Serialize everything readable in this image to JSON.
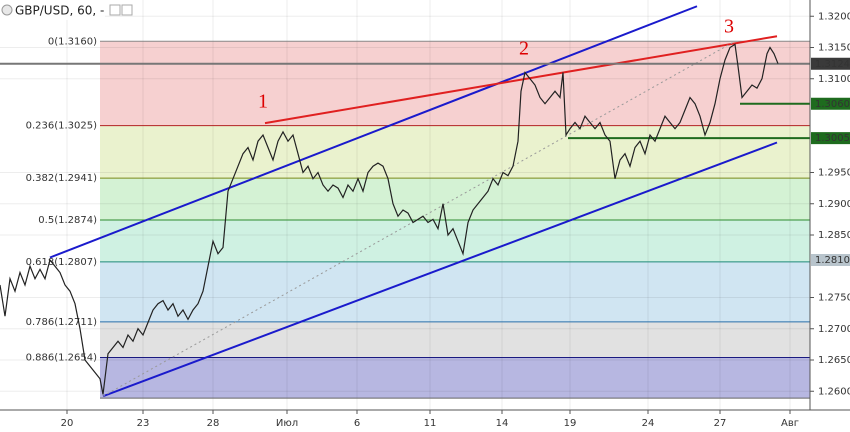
{
  "header": "GBP/USD, 60, -",
  "chart_data": {
    "type": "line",
    "color": "#222",
    "xlim": [
      0,
      810
    ],
    "ylim": [
      1.257,
      1.3226
    ],
    "xticks": [
      {
        "value": 67,
        "label": "20"
      },
      {
        "value": 143,
        "label": "23"
      },
      {
        "value": 213,
        "label": "28"
      },
      {
        "value": 287,
        "label": "Июл"
      },
      {
        "value": 357,
        "label": "6"
      },
      {
        "value": 430,
        "label": "11"
      },
      {
        "value": 502,
        "label": "14"
      },
      {
        "value": 570,
        "label": "19"
      },
      {
        "value": 648,
        "label": "24"
      },
      {
        "value": 720,
        "label": "27"
      },
      {
        "value": 790,
        "label": "Авг"
      }
    ],
    "yticks": [
      {
        "value": 1.32,
        "label": "1.3200"
      },
      {
        "value": 1.315,
        "label": "1.3150"
      },
      {
        "value": 1.31,
        "label": "1.3100"
      },
      {
        "value": 1.295,
        "label": "1.2950"
      },
      {
        "value": 1.29,
        "label": "1.2900"
      },
      {
        "value": 1.285,
        "label": "1.2850"
      },
      {
        "value": 1.275,
        "label": "1.2750"
      },
      {
        "value": 1.27,
        "label": "1.2700"
      },
      {
        "value": 1.265,
        "label": "1.2650"
      },
      {
        "value": 1.26,
        "label": "1.2600"
      }
    ],
    "grid": true,
    "x": [
      0,
      5,
      10,
      15,
      20,
      25,
      30,
      35,
      40,
      45,
      50,
      55,
      60,
      65,
      70,
      75,
      80,
      85,
      90,
      95,
      100,
      103,
      108,
      113,
      118,
      123,
      128,
      133,
      138,
      143,
      148,
      153,
      158,
      163,
      168,
      173,
      178,
      183,
      188,
      193,
      198,
      203,
      208,
      213,
      218,
      223,
      228,
      233,
      238,
      243,
      248,
      253,
      258,
      263,
      268,
      273,
      278,
      283,
      288,
      293,
      298,
      303,
      308,
      313,
      318,
      323,
      328,
      333,
      338,
      343,
      348,
      353,
      358,
      363,
      368,
      373,
      378,
      383,
      388,
      393,
      398,
      403,
      408,
      413,
      418,
      423,
      428,
      433,
      438,
      443,
      448,
      453,
      458,
      463,
      468,
      473,
      478,
      483,
      488,
      493,
      498,
      503,
      508,
      513,
      518,
      521,
      525,
      530,
      535,
      540,
      545,
      550,
      555,
      560,
      563,
      566,
      570,
      575,
      580,
      585,
      590,
      595,
      600,
      605,
      610,
      615,
      620,
      625,
      630,
      635,
      640,
      645,
      650,
      655,
      660,
      665,
      670,
      675,
      680,
      685,
      690,
      695,
      700,
      705,
      710,
      715,
      720,
      725,
      730,
      735,
      738,
      742,
      747,
      752,
      757,
      762,
      767,
      770,
      774,
      778
    ],
    "values": [
      1.277,
      1.272,
      1.278,
      1.276,
      1.279,
      1.277,
      1.28,
      1.278,
      1.2795,
      1.278,
      1.281,
      1.28,
      1.279,
      1.277,
      1.276,
      1.274,
      1.27,
      1.265,
      1.264,
      1.263,
      1.262,
      1.2595,
      1.266,
      1.267,
      1.268,
      1.267,
      1.269,
      1.268,
      1.27,
      1.269,
      1.271,
      1.273,
      1.274,
      1.2745,
      1.273,
      1.274,
      1.272,
      1.273,
      1.2715,
      1.273,
      1.274,
      1.276,
      1.28,
      1.284,
      1.282,
      1.283,
      1.292,
      1.294,
      1.296,
      1.298,
      1.299,
      1.297,
      1.3,
      1.301,
      1.299,
      1.297,
      1.3,
      1.3015,
      1.3,
      1.301,
      1.298,
      1.295,
      1.296,
      1.294,
      1.295,
      1.293,
      1.292,
      1.293,
      1.2925,
      1.291,
      1.293,
      1.292,
      1.294,
      1.292,
      1.295,
      1.296,
      1.2965,
      1.296,
      1.294,
      1.29,
      1.288,
      1.289,
      1.2885,
      1.287,
      1.2875,
      1.288,
      1.287,
      1.2875,
      1.286,
      1.29,
      1.285,
      1.286,
      1.284,
      1.282,
      1.287,
      1.289,
      1.29,
      1.291,
      1.292,
      1.294,
      1.293,
      1.295,
      1.2945,
      1.296,
      1.3,
      1.308,
      1.311,
      1.31,
      1.309,
      1.307,
      1.306,
      1.307,
      1.308,
      1.307,
      1.311,
      1.301,
      1.302,
      1.303,
      1.302,
      1.304,
      1.303,
      1.302,
      1.303,
      1.301,
      1.3,
      1.294,
      1.297,
      1.298,
      1.296,
      1.299,
      1.3,
      1.298,
      1.301,
      1.3,
      1.302,
      1.304,
      1.303,
      1.302,
      1.303,
      1.305,
      1.307,
      1.306,
      1.304,
      1.301,
      1.303,
      1.306,
      1.31,
      1.313,
      1.315,
      1.3155,
      1.312,
      1.307,
      1.308,
      1.309,
      1.3085,
      1.31,
      1.314,
      1.315,
      1.314,
      1.3124
    ],
    "fib_low": 1.2589,
    "fib_levels": [
      {
        "label": "0(1.3160)",
        "value": 1.316,
        "color": "#888888",
        "fill": "#f4c8c8"
      },
      {
        "label": "0.236(1.3025)",
        "value": 1.3025,
        "color": "#b22222",
        "fill": "#e6f0c6"
      },
      {
        "label": "0.382(1.2941)",
        "value": 1.2941,
        "color": "#7a8a1a",
        "fill": "#cdf0cd"
      },
      {
        "label": "0.5(1.2874)",
        "value": 1.2874,
        "color": "#2e8b2e",
        "fill": "#c7eedd"
      },
      {
        "label": "0.618(1.2807)",
        "value": 1.2807,
        "color": "#1f8a7a",
        "fill": "#c8e0f0"
      },
      {
        "label": "0.786(1.2711)",
        "value": 1.2711,
        "color": "#2a6fa8",
        "fill": "#dcdcdc"
      },
      {
        "label": "0.886(1.2654)",
        "value": 1.2654,
        "color": "#1a1a80",
        "fill": "#aaaadc"
      }
    ],
    "lines": [
      {
        "color": "#1a1acc",
        "x": [
          50,
          697
        ],
        "y": [
          1.2814,
          1.3216
        ]
      },
      {
        "color": "#1a1acc",
        "x": [
          103,
          777
        ],
        "y": [
          1.2592,
          1.2998
        ]
      },
      {
        "color": "#e02020",
        "x": [
          265,
          777
        ],
        "y": [
          1.3029,
          1.3168
        ]
      },
      {
        "color": "#1e6b1e",
        "x": [
          568,
          810
        ],
        "y": [
          1.3005,
          1.3005
        ]
      },
      {
        "color": "#1e6b1e",
        "x": [
          740,
          810
        ],
        "y": [
          1.306,
          1.306
        ]
      },
      {
        "color": "#999999",
        "x": [
          103,
          735
        ],
        "y": [
          1.2592,
          1.316
        ]
      },
      {
        "color": "#777777",
        "x": [
          0,
          810
        ],
        "y": [
          1.3124,
          1.3124
        ]
      }
    ],
    "price_labels": [
      {
        "value": 1.3124,
        "label": "1.3124",
        "color": "#3a3a3a"
      },
      {
        "value": 1.306,
        "label": "1.3060",
        "color": "#1e6b1e"
      },
      {
        "value": 1.3005,
        "label": "1.3005",
        "color": "#1e6b1e"
      },
      {
        "value": 1.281,
        "label": "1.2810",
        "color": "#b8c4cc"
      }
    ],
    "annotations": [
      {
        "text": "1",
        "x": 263,
        "y": 1.3061
      },
      {
        "text": "2",
        "x": 524,
        "y": 1.3146
      },
      {
        "text": "3",
        "x": 729,
        "y": 1.3181
      }
    ]
  }
}
